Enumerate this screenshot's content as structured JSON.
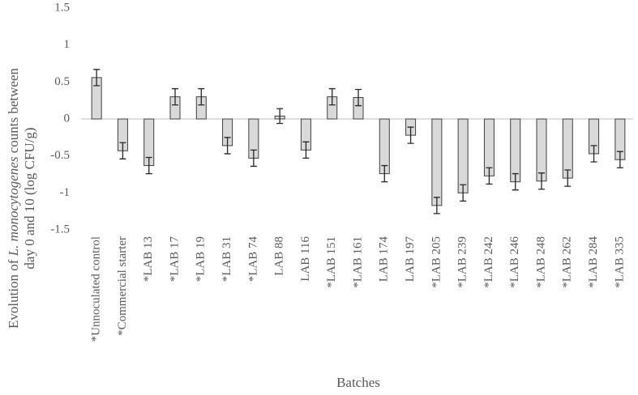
{
  "chart_data": {
    "type": "bar",
    "x_label": "Batches",
    "y_label_lines": [
      [
        "Evolution of ",
        "L. monocytogenes",
        " counts between"
      ],
      [
        "day 0 and 10 (log CFU/g)"
      ]
    ],
    "categories": [
      "*Unnoculated control",
      "*Commercial starter",
      "*LAB 13",
      "*LAB 17",
      "*LAB 19",
      "*LAB 31",
      "*LAB 74",
      "LAB 88",
      "LAB 116",
      "*LAB 151",
      "*LAB 161",
      "LAB 174",
      "LAB 197",
      "*LAB 205",
      "*LAB 239",
      "*LAB 242",
      "*LAB 246",
      "*LAB 248",
      "*LAB 262",
      "*LAB 284",
      "*LAB 335"
    ],
    "values": [
      0.56,
      -0.43,
      -0.63,
      0.3,
      0.3,
      -0.36,
      -0.53,
      0.04,
      -0.42,
      0.3,
      0.29,
      -0.74,
      -0.22,
      -1.17,
      -1.0,
      -0.77,
      -0.85,
      -0.84,
      -0.8,
      -0.47,
      -0.55
    ],
    "errors": [
      0.11,
      0.11,
      0.11,
      0.11,
      0.11,
      0.11,
      0.11,
      0.1,
      0.11,
      0.11,
      0.11,
      0.11,
      0.11,
      0.11,
      0.11,
      0.11,
      0.11,
      0.11,
      0.11,
      0.11,
      0.11
    ],
    "color": "#d9d9d9",
    "ylim": [
      -1.5,
      1.5
    ],
    "yticks": [
      -1.5,
      -1,
      -0.5,
      0,
      0.5,
      1,
      1.5
    ]
  }
}
